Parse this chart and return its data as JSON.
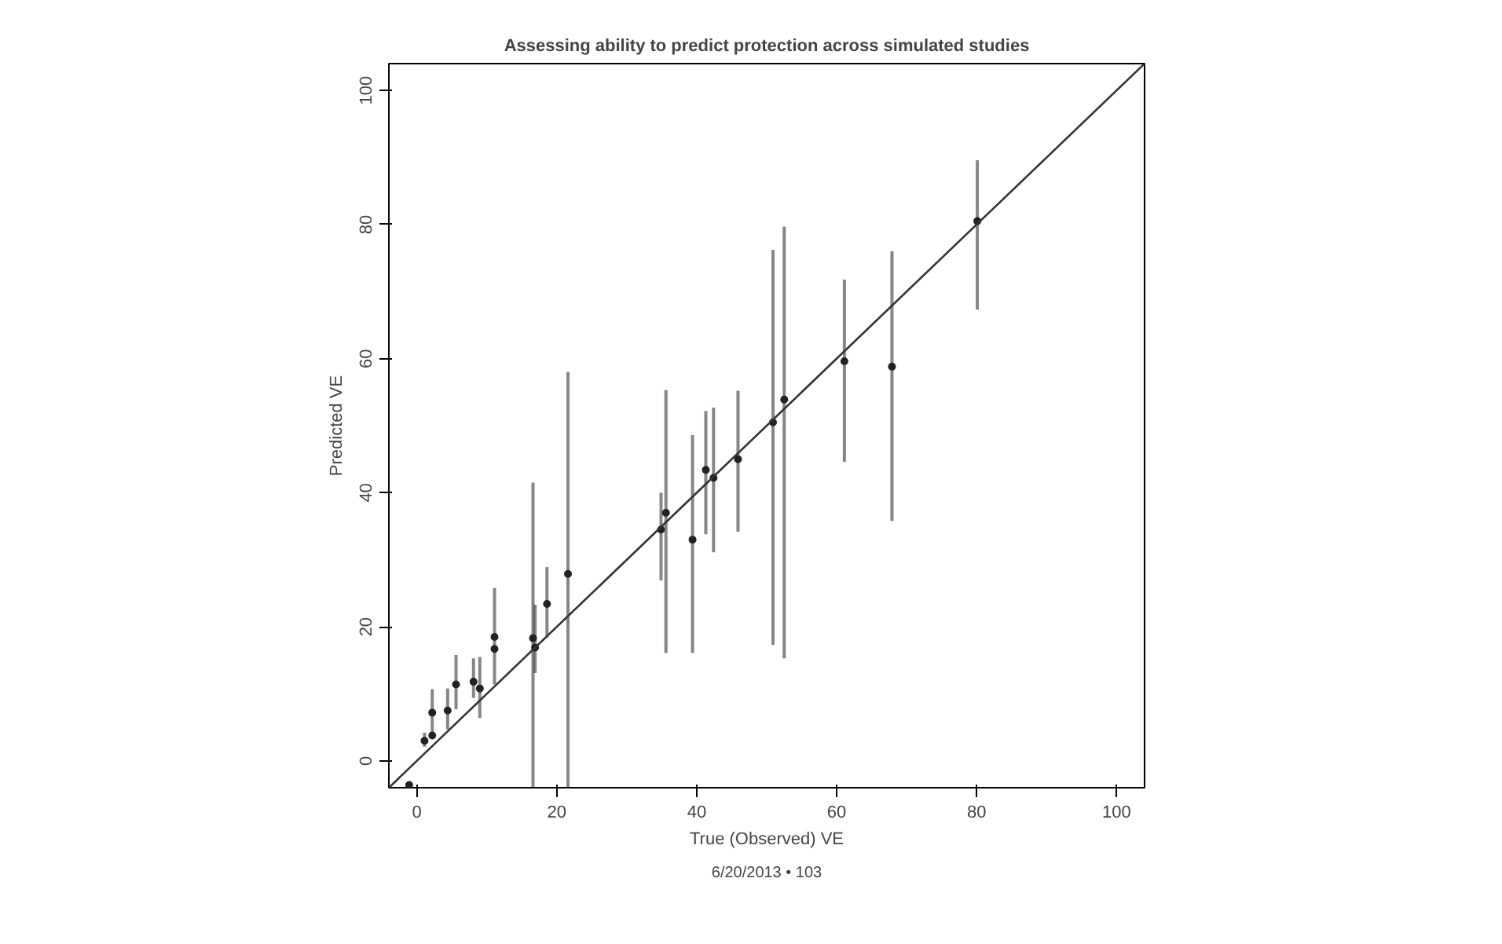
{
  "chart_data": {
    "type": "scatter",
    "title": "Assessing ability to predict protection across simulated studies",
    "xlabel": "True (Observed) VE",
    "ylabel": "Predicted VE",
    "xlim": [
      -4,
      104
    ],
    "ylim": [
      -4,
      104
    ],
    "xticks": [
      0,
      20,
      40,
      60,
      80,
      100
    ],
    "yticks": [
      0,
      20,
      40,
      60,
      80,
      100
    ],
    "grid": false,
    "series": [
      {
        "color": "#222222",
        "marker": "circle",
        "x": [
          -1.1,
          1.1,
          2.2,
          2.2,
          4.4,
          5.6,
          8.1,
          9.0,
          11.1,
          11.1,
          16.6,
          16.9,
          18.6,
          21.6,
          34.9,
          35.6,
          39.4,
          41.3,
          42.4,
          45.9,
          50.9,
          52.5,
          61.1,
          67.9,
          80.1
        ],
        "values": [
          -3.6,
          3.0,
          7.2,
          3.8,
          7.5,
          11.4,
          11.8,
          10.8,
          18.5,
          16.7,
          18.3,
          16.9,
          23.4,
          27.9,
          34.5,
          37.0,
          33.0,
          43.4,
          42.2,
          45.0,
          50.5,
          53.9,
          59.6,
          58.8,
          80.5
        ],
        "errors": [
          null,
          [
            2.1,
            4.2
          ],
          [
            3.8,
            10.7
          ],
          null,
          [
            4.7,
            10.8
          ],
          [
            7.7,
            15.8
          ],
          [
            9.4,
            15.3
          ],
          [
            6.4,
            15.5
          ],
          [
            11.4,
            25.8
          ],
          null,
          [
            -4,
            41.5
          ],
          [
            13.1,
            23.3
          ],
          [
            18.4,
            28.9
          ],
          [
            -4,
            58.0
          ],
          [
            26.9,
            40.0
          ],
          [
            16.1,
            55.3
          ],
          [
            16.1,
            48.6
          ],
          [
            33.8,
            52.2
          ],
          [
            31.1,
            52.7
          ],
          [
            34.2,
            55.2
          ],
          [
            17.3,
            76.2
          ],
          [
            15.3,
            79.7
          ],
          [
            44.6,
            71.8
          ],
          [
            35.8,
            76.0
          ],
          [
            67.3,
            89.6
          ]
        ]
      },
      {
        "type": "line",
        "marker": "none",
        "color": "#333333",
        "x": [
          -4,
          104
        ],
        "values": [
          -4,
          104
        ]
      }
    ],
    "annotations": [
      "6/20/2013 • 103"
    ]
  }
}
